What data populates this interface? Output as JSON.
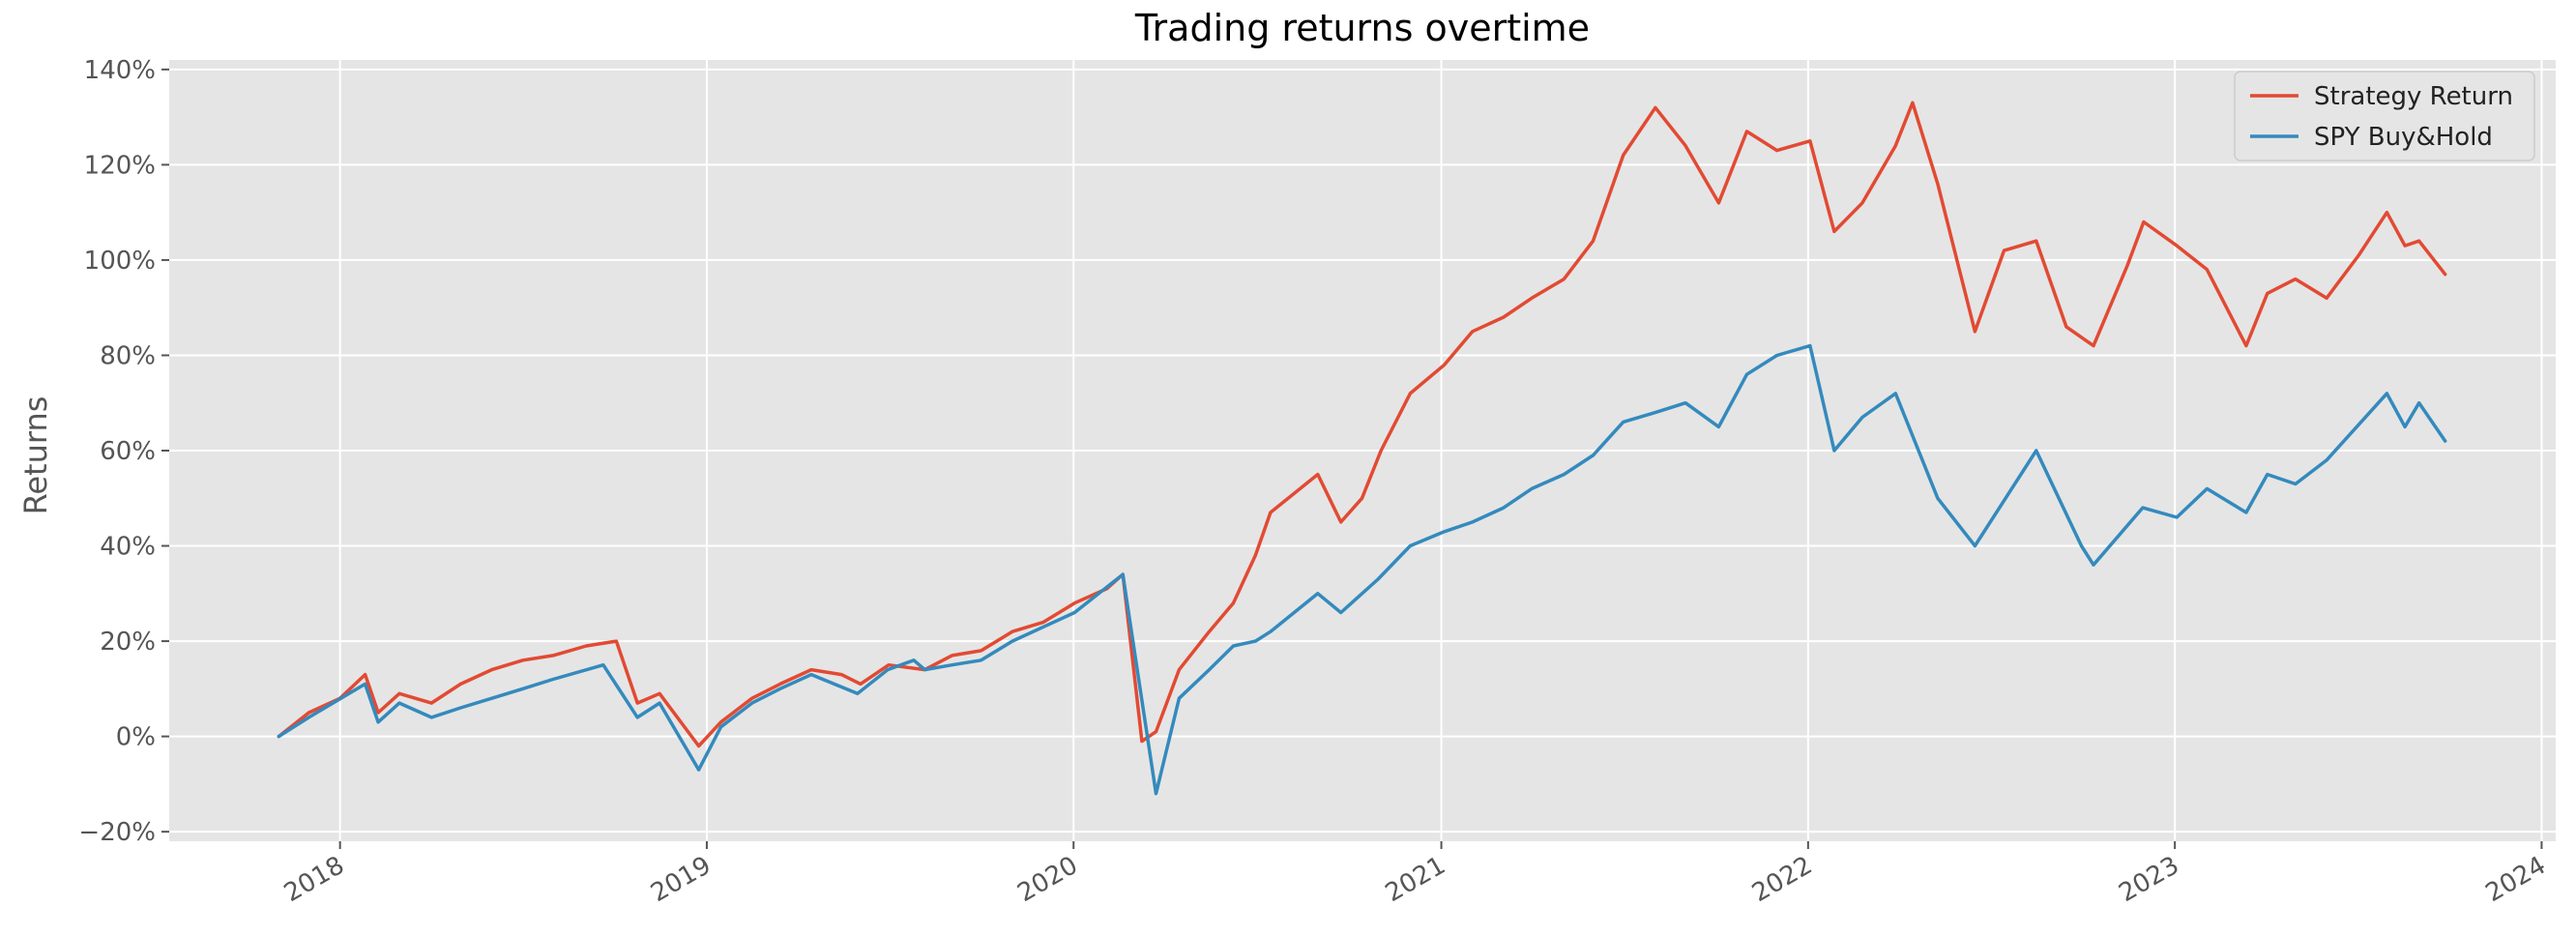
{
  "chart_data": {
    "type": "line",
    "title": "Trading returns overtime",
    "xlabel": "",
    "ylabel": "Returns",
    "ylim": [
      -22,
      142
    ],
    "xlim": [
      "2017-07-15",
      "2024-01-15"
    ],
    "grid": true,
    "legend_position": "top-right",
    "y_ticks": [
      -20,
      0,
      20,
      40,
      60,
      80,
      100,
      120,
      140
    ],
    "y_tick_labels": [
      "−20%",
      "0%",
      "20%",
      "40%",
      "60%",
      "80%",
      "100%",
      "120%",
      "140%"
    ],
    "x_ticks": [
      "2018-01-01",
      "2019-01-01",
      "2020-01-01",
      "2021-01-01",
      "2022-01-01",
      "2023-01-01",
      "2024-01-01"
    ],
    "x_tick_labels": [
      "2018",
      "2019",
      "2020",
      "2021",
      "2022",
      "2023",
      "2024"
    ],
    "colors": {
      "background": "#e5e5e5",
      "grid": "#ffffff"
    },
    "series": [
      {
        "name": "Strategy Return",
        "color": "#e24a33",
        "x": [
          "2017-11-01",
          "2017-12-01",
          "2018-01-01",
          "2018-01-26",
          "2018-02-08",
          "2018-03-01",
          "2018-04-02",
          "2018-05-01",
          "2018-06-01",
          "2018-07-02",
          "2018-08-01",
          "2018-09-03",
          "2018-10-03",
          "2018-10-24",
          "2018-11-15",
          "2018-12-24",
          "2019-01-15",
          "2019-02-15",
          "2019-03-15",
          "2019-04-15",
          "2019-05-15",
          "2019-06-03",
          "2019-07-01",
          "2019-08-06",
          "2019-09-02",
          "2019-10-01",
          "2019-11-01",
          "2019-12-02",
          "2020-01-02",
          "2020-02-03",
          "2020-02-19",
          "2020-03-09",
          "2020-03-23",
          "2020-04-15",
          "2020-05-15",
          "2020-06-08",
          "2020-06-30",
          "2020-07-15",
          "2020-08-31",
          "2020-09-23",
          "2020-10-14",
          "2020-11-02",
          "2020-12-01",
          "2021-01-04",
          "2021-02-01",
          "2021-03-04",
          "2021-04-01",
          "2021-05-03",
          "2021-06-01",
          "2021-07-01",
          "2021-08-02",
          "2021-09-01",
          "2021-10-04",
          "2021-11-01",
          "2021-12-01",
          "2022-01-03",
          "2022-01-27",
          "2022-02-24",
          "2022-03-29",
          "2022-04-15",
          "2022-05-10",
          "2022-06-16",
          "2022-07-15",
          "2022-08-16",
          "2022-09-15",
          "2022-10-12",
          "2022-11-15",
          "2022-12-01",
          "2023-01-03",
          "2023-02-02",
          "2023-03-13",
          "2023-04-03",
          "2023-05-01",
          "2023-06-01",
          "2023-07-03",
          "2023-07-31",
          "2023-08-18",
          "2023-09-01",
          "2023-09-27"
        ],
        "values": [
          0,
          5,
          8,
          13,
          5,
          9,
          7,
          11,
          14,
          16,
          17,
          19,
          20,
          7,
          9,
          -2,
          3,
          8,
          11,
          14,
          13,
          11,
          15,
          14,
          17,
          18,
          22,
          24,
          28,
          31,
          34,
          -1,
          1,
          14,
          22,
          28,
          38,
          47,
          55,
          45,
          50,
          60,
          72,
          78,
          85,
          88,
          92,
          96,
          104,
          122,
          132,
          124,
          112,
          127,
          123,
          125,
          106,
          112,
          124,
          133,
          116,
          85,
          102,
          104,
          86,
          82,
          99,
          108,
          103,
          98,
          82,
          93,
          96,
          92,
          101,
          110,
          103,
          104,
          97
        ]
      },
      {
        "name": "SPY Buy&Hold",
        "color": "#348abd",
        "x": [
          "2017-11-01",
          "2017-12-01",
          "2018-01-26",
          "2018-02-08",
          "2018-03-01",
          "2018-04-02",
          "2018-05-01",
          "2018-06-01",
          "2018-07-02",
          "2018-08-01",
          "2018-09-20",
          "2018-10-24",
          "2018-11-15",
          "2018-12-24",
          "2019-01-15",
          "2019-02-15",
          "2019-03-15",
          "2019-04-15",
          "2019-05-31",
          "2019-06-30",
          "2019-07-26",
          "2019-08-06",
          "2019-09-02",
          "2019-10-01",
          "2019-11-01",
          "2019-12-02",
          "2020-01-02",
          "2020-02-19",
          "2020-03-23",
          "2020-04-15",
          "2020-05-15",
          "2020-06-08",
          "2020-06-30",
          "2020-07-15",
          "2020-08-31",
          "2020-09-23",
          "2020-10-30",
          "2020-12-01",
          "2021-01-04",
          "2021-02-01",
          "2021-03-04",
          "2021-04-01",
          "2021-05-03",
          "2021-06-01",
          "2021-07-01",
          "2021-08-02",
          "2021-09-01",
          "2021-10-04",
          "2021-11-01",
          "2021-12-01",
          "2022-01-03",
          "2022-01-27",
          "2022-02-24",
          "2022-03-29",
          "2022-05-10",
          "2022-06-16",
          "2022-08-16",
          "2022-09-30",
          "2022-10-12",
          "2022-11-30",
          "2023-01-03",
          "2023-02-02",
          "2023-03-13",
          "2023-04-03",
          "2023-05-01",
          "2023-06-01",
          "2023-07-31",
          "2023-08-18",
          "2023-09-01",
          "2023-09-27"
        ],
        "values": [
          0,
          4,
          11,
          3,
          7,
          4,
          6,
          8,
          10,
          12,
          15,
          4,
          7,
          -7,
          2,
          7,
          10,
          13,
          9,
          14,
          16,
          14,
          15,
          16,
          20,
          23,
          26,
          34,
          -12,
          8,
          14,
          19,
          20,
          22,
          30,
          26,
          33,
          40,
          43,
          45,
          48,
          52,
          55,
          59,
          66,
          68,
          70,
          65,
          76,
          80,
          82,
          60,
          67,
          72,
          50,
          40,
          60,
          40,
          36,
          48,
          46,
          52,
          47,
          55,
          53,
          58,
          72,
          65,
          70,
          62
        ]
      }
    ]
  }
}
